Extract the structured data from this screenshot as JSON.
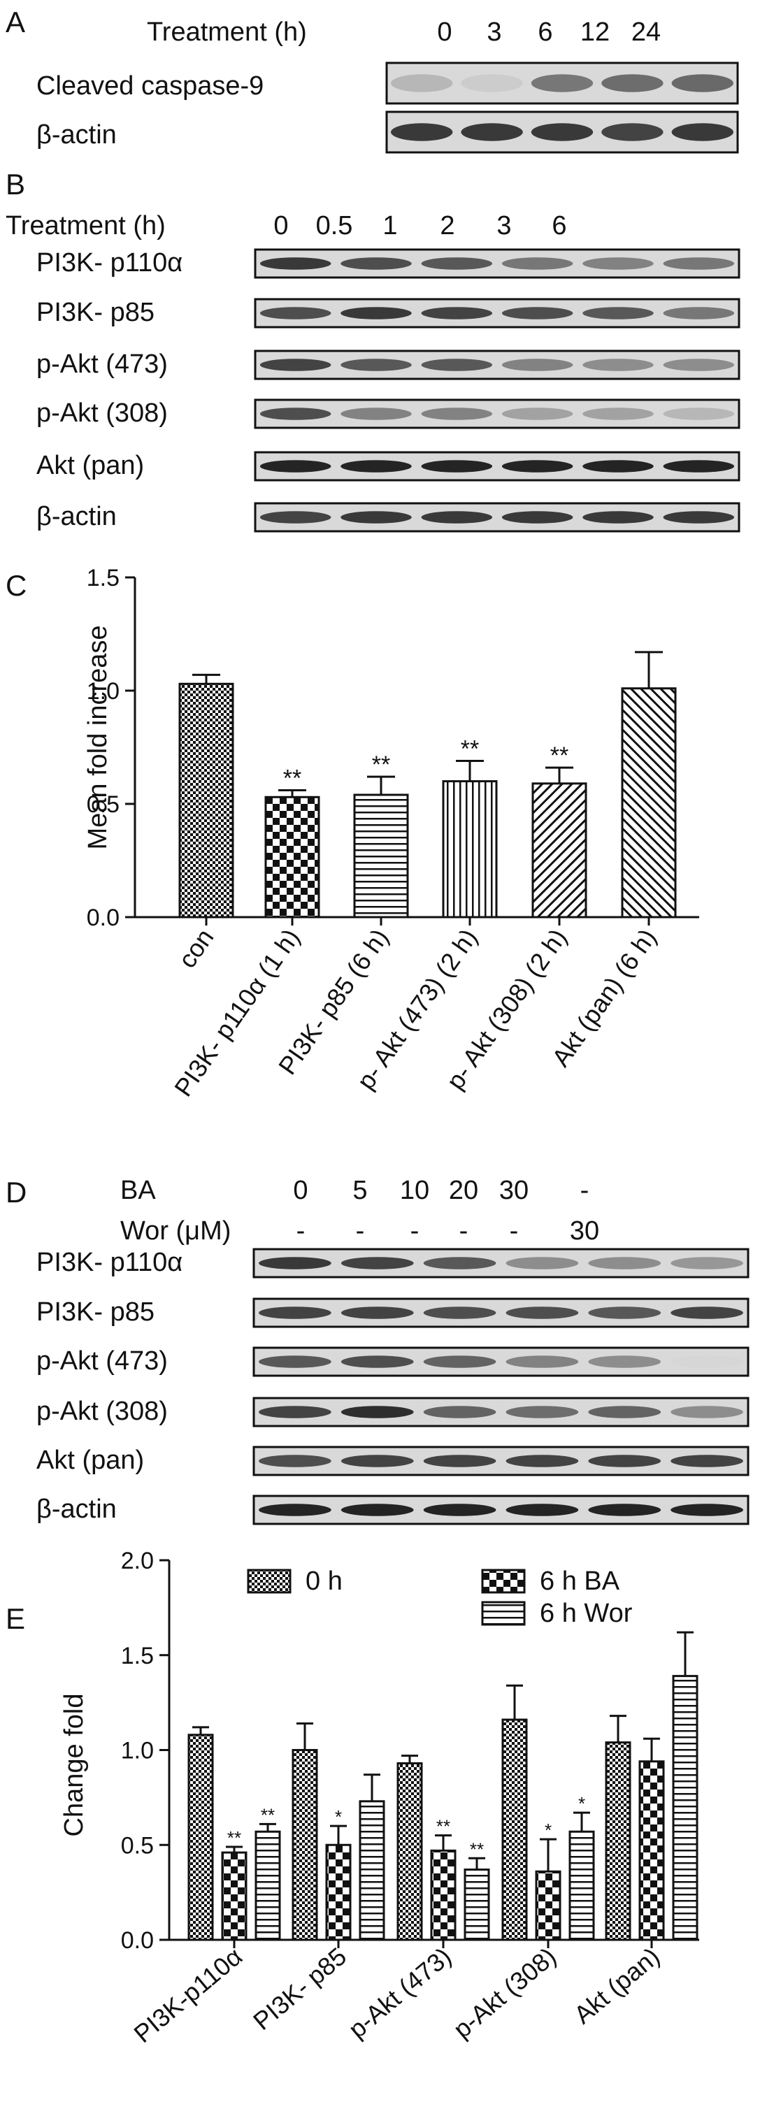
{
  "panel_a": {
    "letter": "A",
    "header_label": "Treatment (h)",
    "times": [
      "0",
      "3",
      "6",
      "12",
      "24"
    ],
    "rows": [
      {
        "label": "Cleaved caspase-9",
        "intensities": [
          0.25,
          0.15,
          0.55,
          0.6,
          0.62
        ]
      },
      {
        "label": "β-actin",
        "intensities": [
          0.85,
          0.85,
          0.85,
          0.8,
          0.85
        ]
      }
    ]
  },
  "panel_b": {
    "letter": "B",
    "header_label": "Treatment  (h)",
    "times": [
      "0",
      "0.5",
      "1",
      "2",
      "3",
      "6"
    ],
    "rows": [
      {
        "label": "PI3K- p110α",
        "intensities": [
          0.85,
          0.75,
          0.7,
          0.55,
          0.5,
          0.55
        ]
      },
      {
        "label": "PI3K- p85",
        "intensities": [
          0.75,
          0.85,
          0.8,
          0.75,
          0.7,
          0.55
        ]
      },
      {
        "label": "p-Akt (473)",
        "intensities": [
          0.8,
          0.7,
          0.7,
          0.5,
          0.45,
          0.45
        ]
      },
      {
        "label": "p-Akt (308)",
        "intensities": [
          0.75,
          0.5,
          0.5,
          0.35,
          0.35,
          0.25
        ]
      },
      {
        "label": "Akt (pan)",
        "intensities": [
          0.95,
          0.95,
          0.95,
          0.95,
          0.95,
          0.95
        ]
      },
      {
        "label": "β-actin",
        "intensities": [
          0.8,
          0.85,
          0.85,
          0.85,
          0.85,
          0.85
        ]
      }
    ]
  },
  "panel_d": {
    "letter": "D",
    "ba_label": "BA",
    "wor_label": "Wor (μM)",
    "ba_values": [
      "0",
      "5",
      "10",
      "20",
      "30",
      "-"
    ],
    "wor_values": [
      "-",
      "-",
      "-",
      "-",
      "-",
      "30"
    ],
    "rows": [
      {
        "label": "PI3K- p110α",
        "intensities": [
          0.85,
          0.8,
          0.7,
          0.45,
          0.45,
          0.4
        ]
      },
      {
        "label": "PI3K- p85",
        "intensities": [
          0.8,
          0.8,
          0.75,
          0.75,
          0.7,
          0.8
        ]
      },
      {
        "label": "p-Akt (473)",
        "intensities": [
          0.7,
          0.75,
          0.65,
          0.5,
          0.45,
          0.1
        ]
      },
      {
        "label": "p-Akt (308)",
        "intensities": [
          0.8,
          0.9,
          0.65,
          0.6,
          0.65,
          0.45
        ]
      },
      {
        "label": "Akt (pan)",
        "intensities": [
          0.75,
          0.8,
          0.8,
          0.8,
          0.8,
          0.8
        ]
      },
      {
        "label": "β-actin",
        "intensities": [
          0.95,
          0.95,
          0.95,
          0.95,
          0.95,
          0.95
        ]
      }
    ]
  },
  "chart_data": [
    {
      "panel": "C",
      "type": "bar",
      "ylabel": "Mean fold increase",
      "ylim": [
        0,
        1.5
      ],
      "yticks": [
        "0.0",
        "0.5",
        "1.0",
        "1.5"
      ],
      "categories": [
        "con",
        "PI3K- p110α (1 h)",
        "PI3K- p85 (6 h)",
        "p- Akt (473) (2 h)",
        "p- Akt (308) (2 h)",
        "Akt (pan) (6 h)"
      ],
      "values": [
        1.03,
        0.53,
        0.54,
        0.6,
        0.59,
        1.01
      ],
      "errors": [
        0.04,
        0.03,
        0.08,
        0.09,
        0.07,
        0.16
      ],
      "annotations": [
        "",
        "**",
        "**",
        "**",
        "**",
        ""
      ],
      "patterns": [
        "check-fine",
        "check",
        "horizontal",
        "vertical",
        "diagonal-right",
        "diagonal-left"
      ]
    },
    {
      "panel": "E",
      "type": "bar",
      "ylabel": "Change fold",
      "ylim": [
        0,
        2.0
      ],
      "yticks": [
        "0.0",
        "0.5",
        "1.0",
        "1.5",
        "2.0"
      ],
      "categories": [
        "PI3K-p110α",
        "PI3K- p85",
        "p-Akt (473)",
        "p-Akt (308)",
        "Akt (pan)"
      ],
      "series": [
        {
          "name": "0 h",
          "pattern": "check-fine",
          "values": [
            1.08,
            1.0,
            0.93,
            1.16,
            1.04
          ],
          "errors": [
            0.04,
            0.14,
            0.04,
            0.18,
            0.14
          ],
          "annotations": [
            "",
            "",
            "",
            "",
            ""
          ]
        },
        {
          "name": "6 h BA",
          "pattern": "check",
          "values": [
            0.46,
            0.5,
            0.47,
            0.36,
            0.94
          ],
          "errors": [
            0.03,
            0.1,
            0.08,
            0.17,
            0.12
          ],
          "annotations": [
            "**",
            "*",
            "**",
            "*",
            ""
          ]
        },
        {
          "name": "6 h Wor",
          "pattern": "horizontal",
          "values": [
            0.57,
            0.73,
            0.37,
            0.57,
            1.39
          ],
          "errors": [
            0.04,
            0.14,
            0.06,
            0.1,
            0.23
          ],
          "annotations": [
            "**",
            "",
            "**",
            "*",
            ""
          ]
        }
      ],
      "legend_position": "top"
    }
  ]
}
